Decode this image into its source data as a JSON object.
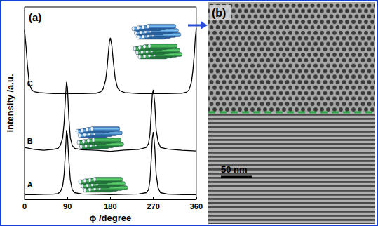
{
  "chart_data": {
    "type": "line",
    "title": "(a)",
    "x_label": "ϕ /degree",
    "y_label": "intensity /a.u.",
    "xlim": [
      0,
      360
    ],
    "xticks": [
      0,
      90,
      180,
      270,
      360
    ],
    "ylim": [
      0,
      1
    ],
    "tick_labels": "x",
    "grid": false,
    "series": [
      {
        "name": "A",
        "color": "#000000",
        "x": [
          0,
          20,
          40,
          60,
          70,
          75,
          80,
          83,
          86,
          88,
          90,
          93,
          96,
          100,
          105,
          120,
          150,
          180,
          210,
          240,
          255,
          260,
          263,
          266,
          268,
          270,
          273,
          276,
          280,
          285,
          300,
          330,
          360
        ],
        "values": [
          0.025,
          0.025,
          0.026,
          0.027,
          0.03,
          0.04,
          0.07,
          0.13,
          0.26,
          0.36,
          0.33,
          0.2,
          0.1,
          0.05,
          0.035,
          0.028,
          0.026,
          0.025,
          0.026,
          0.028,
          0.035,
          0.05,
          0.1,
          0.22,
          0.32,
          0.35,
          0.27,
          0.13,
          0.06,
          0.035,
          0.027,
          0.025,
          0.025
        ]
      },
      {
        "name": "B",
        "color": "#000000",
        "x": [
          0,
          20,
          40,
          60,
          70,
          75,
          80,
          83,
          86,
          88,
          90,
          93,
          96,
          100,
          105,
          120,
          150,
          180,
          210,
          240,
          255,
          260,
          263,
          266,
          268,
          270,
          273,
          276,
          280,
          285,
          300,
          330,
          360
        ],
        "values": [
          0.27,
          0.26,
          0.255,
          0.26,
          0.265,
          0.28,
          0.32,
          0.4,
          0.54,
          0.61,
          0.58,
          0.42,
          0.32,
          0.28,
          0.265,
          0.258,
          0.255,
          0.25,
          0.256,
          0.26,
          0.27,
          0.29,
          0.34,
          0.46,
          0.55,
          0.57,
          0.5,
          0.36,
          0.3,
          0.27,
          0.262,
          0.255,
          0.252
        ]
      },
      {
        "name": "C",
        "color": "#000000",
        "x": [
          0,
          3,
          6,
          10,
          15,
          20,
          30,
          60,
          90,
          120,
          150,
          160,
          165,
          170,
          173,
          176,
          178,
          180,
          183,
          186,
          190,
          195,
          200,
          210,
          240,
          270,
          300,
          330,
          340,
          345,
          350,
          353,
          356,
          358,
          360
        ],
        "values": [
          0.88,
          0.8,
          0.7,
          0.6,
          0.57,
          0.56,
          0.555,
          0.55,
          0.55,
          0.55,
          0.552,
          0.56,
          0.575,
          0.62,
          0.68,
          0.77,
          0.82,
          0.84,
          0.8,
          0.72,
          0.63,
          0.58,
          0.565,
          0.555,
          0.55,
          0.55,
          0.55,
          0.552,
          0.558,
          0.57,
          0.61,
          0.67,
          0.76,
          0.84,
          0.89
        ]
      }
    ]
  },
  "panel_b": {
    "label": "(b)",
    "scale_bar": "50 nm"
  }
}
